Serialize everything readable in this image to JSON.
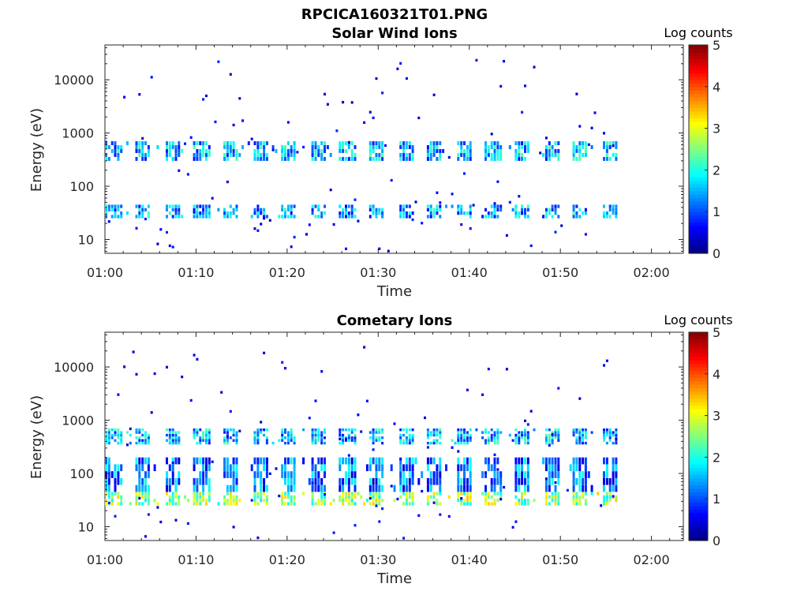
{
  "figure_title": "RPCICA160321T01.PNG",
  "chart_data": [
    {
      "type": "heatmap",
      "title": "Solar Wind Ions",
      "xlabel": "Time",
      "ylabel": "Energy (eV)",
      "x_ticks": [
        "01:00",
        "01:10",
        "01:20",
        "01:30",
        "01:40",
        "01:50",
        "02:00"
      ],
      "x_range_minutes": [
        0,
        63.5
      ],
      "y_scale": "log",
      "y_ticks": [
        10,
        100,
        1000,
        10000
      ],
      "y_tick_labels": [
        "10",
        "100",
        "1000",
        "10000"
      ],
      "y_range": [
        5.5,
        45000
      ],
      "colorbar": {
        "label": "Log counts",
        "range": [
          0,
          5
        ],
        "ticks": [
          "0",
          "1",
          "2",
          "3",
          "4",
          "5"
        ],
        "colormap": "jet"
      },
      "grid": false,
      "data_extent_minutes": [
        0,
        56.5
      ],
      "burst_period_minutes": 3.2,
      "bands": [
        {
          "energy_range": [
            25,
            45
          ],
          "log_counts": 1.4
        },
        {
          "energy_range": [
            300,
            700
          ],
          "log_counts": 1.5
        }
      ]
    },
    {
      "type": "heatmap",
      "title": "Cometary Ions",
      "xlabel": "Time",
      "ylabel": "Energy (eV)",
      "x_ticks": [
        "01:00",
        "01:10",
        "01:20",
        "01:30",
        "01:40",
        "01:50",
        "02:00"
      ],
      "x_range_minutes": [
        0,
        63.5
      ],
      "y_scale": "log",
      "y_ticks": [
        10,
        100,
        1000,
        10000
      ],
      "y_tick_labels": [
        "10",
        "100",
        "1000",
        "10000"
      ],
      "y_range": [
        5.5,
        45000
      ],
      "colorbar": {
        "label": "Log counts",
        "range": [
          0,
          5
        ],
        "ticks": [
          "0",
          "1",
          "2",
          "3",
          "4",
          "5"
        ],
        "colormap": "jet"
      },
      "grid": false,
      "data_extent_minutes": [
        0,
        56.5
      ],
      "burst_period_minutes": 3.2,
      "bands": [
        {
          "energy_range": [
            25,
            45
          ],
          "log_counts": 2.6
        },
        {
          "energy_range": [
            45,
            200
          ],
          "log_counts": 1.2
        },
        {
          "energy_range": [
            350,
            700
          ],
          "log_counts": 1.5
        }
      ]
    }
  ]
}
